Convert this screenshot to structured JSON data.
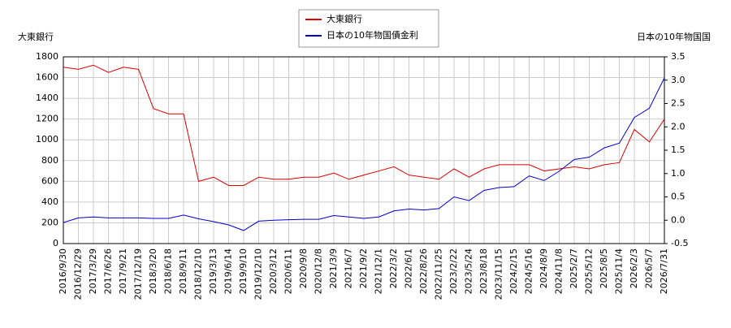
{
  "chart_data": {
    "type": "line",
    "y_title": "大東銀行",
    "y2_title": "日本の10年物国国",
    "categories": [
      "2016/9/30",
      "2016/12/29",
      "2017/3/29",
      "2017/6/26",
      "2017/9/21",
      "2017/12/19",
      "2018/3/20",
      "2018/6/18",
      "2018/9/11",
      "2018/12/10",
      "2019/3/13",
      "2019/6/14",
      "2019/9/10",
      "2019/12/10",
      "2020/3/12",
      "2020/6/11",
      "2020/9/8",
      "2020/12/8",
      "2021/3/9",
      "2021/6/7",
      "2021/9/2",
      "2021/12/1",
      "2022/3/2",
      "2022/6/1",
      "2022/8/26",
      "2022/11/25",
      "2023/2/22",
      "2023/5/24",
      "2023/8/18",
      "2023/11/15",
      "2024/2/15",
      "2024/5/16",
      "2024/8/9",
      "2024/11/8",
      "2025/2/7",
      "2025/5/12",
      "2025/8/5",
      "2025/11/4",
      "2026/2/3",
      "2026/5/7",
      "2026/7/31"
    ],
    "series": [
      {
        "name": "大東銀行",
        "color": "#dd0000",
        "axis": "y",
        "values": [
          1700,
          1680,
          1720,
          1650,
          1700,
          1680,
          1300,
          1250,
          1250,
          600,
          640,
          560,
          560,
          640,
          620,
          620,
          640,
          640,
          680,
          620,
          660,
          700,
          740,
          660,
          640,
          620,
          720,
          640,
          720,
          760,
          760,
          760,
          700,
          720,
          740,
          720,
          760,
          780,
          1100,
          980,
          1200
        ]
      },
      {
        "name": "日本の10年物国債金利",
        "color": "#0000cc",
        "axis": "y2",
        "values": [
          -0.05,
          0.05,
          0.07,
          0.05,
          0.05,
          0.05,
          0.04,
          0.04,
          0.11,
          0.03,
          -0.03,
          -0.1,
          -0.22,
          -0.02,
          0.0,
          0.01,
          0.02,
          0.02,
          0.1,
          0.07,
          0.04,
          0.07,
          0.2,
          0.24,
          0.22,
          0.25,
          0.5,
          0.42,
          0.64,
          0.7,
          0.72,
          0.95,
          0.85,
          1.05,
          1.3,
          1.35,
          1.55,
          1.65,
          2.2,
          2.4,
          3.05
        ]
      }
    ],
    "ylim": [
      0,
      1800
    ],
    "yticks": [
      0,
      200,
      400,
      600,
      800,
      1000,
      1200,
      1400,
      1600,
      1800
    ],
    "y2lim": [
      -0.5,
      3.5
    ],
    "y2ticks": [
      -0.5,
      {
        "value": 0,
        "label": "0.0"
      },
      0.5,
      {
        "value": 1,
        "label": "1.0"
      },
      1.5,
      {
        "value": 2,
        "label": "2.0"
      },
      2.5,
      {
        "value": 3,
        "label": "3.0"
      },
      3.5
    ],
    "grid": true
  }
}
